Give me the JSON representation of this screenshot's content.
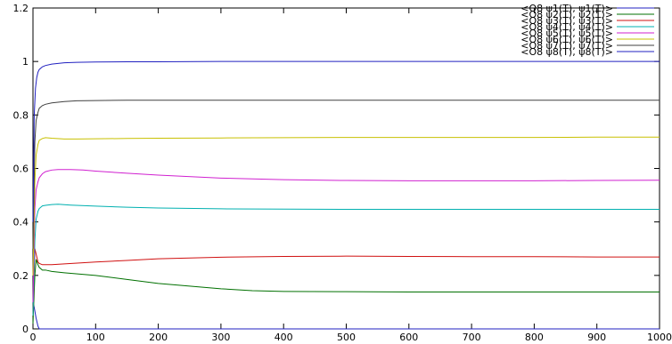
{
  "chart_data": {
    "type": "line",
    "title": "",
    "xlabel": "",
    "ylabel": "",
    "xlim": [
      0,
      1000
    ],
    "ylim": [
      0,
      1.2
    ],
    "x_ticks": [
      0,
      100,
      200,
      300,
      400,
      500,
      600,
      700,
      800,
      900,
      1000
    ],
    "x_tick_labels": [
      "0",
      "100",
      "200",
      "300",
      "400",
      "500",
      "600",
      "700",
      "800",
      "900",
      "1000"
    ],
    "y_ticks": [
      0,
      0.2,
      0.4,
      0.6,
      0.8,
      1,
      1.2
    ],
    "y_tick_labels": [
      "0",
      "0.2",
      "0.4",
      "0.6",
      "0.8",
      "1",
      "1.2"
    ],
    "grid": false,
    "legend_position": "top-right",
    "series": [
      {
        "name": "<O8 ψ1(T), ψ1(T)>",
        "color": "#2020c0",
        "x": [
          0,
          2,
          5,
          8,
          10,
          15,
          20,
          25,
          30,
          40,
          50,
          60,
          80,
          100,
          150,
          200,
          300,
          400,
          500,
          600,
          700,
          800,
          900,
          1000
        ],
        "y": [
          0.1,
          0.08,
          0.04,
          0.01,
          0,
          0,
          0,
          0,
          0,
          0,
          0,
          0,
          0,
          0,
          0,
          0,
          0,
          0,
          0,
          0,
          0,
          0,
          0,
          0
        ]
      },
      {
        "name": "<O8 ψ2(T), ψ2(T)>",
        "color": "#007000",
        "x": [
          0,
          3,
          5,
          8,
          10,
          15,
          20,
          30,
          50,
          100,
          150,
          200,
          300,
          350,
          400,
          500,
          600,
          700,
          800,
          900,
          1000
        ],
        "y": [
          0.02,
          0.2,
          0.26,
          0.24,
          0.23,
          0.22,
          0.22,
          0.215,
          0.21,
          0.2,
          0.185,
          0.17,
          0.15,
          0.143,
          0.14,
          0.139,
          0.138,
          0.138,
          0.138,
          0.138,
          0.138
        ]
      },
      {
        "name": "<O8 ψ3(T), ψ3(T)>",
        "color": "#d01010",
        "x": [
          0,
          3,
          5,
          8,
          10,
          15,
          20,
          30,
          50,
          100,
          150,
          200,
          300,
          400,
          500,
          600,
          700,
          800,
          900,
          1000
        ],
        "y": [
          0.05,
          0.3,
          0.28,
          0.25,
          0.245,
          0.24,
          0.24,
          0.24,
          0.243,
          0.25,
          0.256,
          0.262,
          0.268,
          0.271,
          0.272,
          0.271,
          0.27,
          0.27,
          0.269,
          0.269
        ]
      },
      {
        "name": "<O8 ψ4(T), ψ4(T)>",
        "color": "#00b0b0",
        "x": [
          0,
          3,
          5,
          8,
          10,
          15,
          20,
          30,
          40,
          60,
          100,
          150,
          200,
          300,
          400,
          500,
          600,
          700,
          800,
          900,
          1000
        ],
        "y": [
          0.05,
          0.33,
          0.41,
          0.44,
          0.45,
          0.46,
          0.462,
          0.465,
          0.466,
          0.463,
          0.459,
          0.455,
          0.452,
          0.449,
          0.448,
          0.447,
          0.447,
          0.447,
          0.447,
          0.447,
          0.447
        ]
      },
      {
        "name": "<O8 ψ5(T), ψ5(T)>",
        "color": "#d020d0",
        "x": [
          0,
          3,
          5,
          8,
          10,
          15,
          20,
          30,
          40,
          60,
          80,
          100,
          150,
          200,
          300,
          400,
          500,
          600,
          700,
          800,
          900,
          1000
        ],
        "y": [
          0.1,
          0.45,
          0.52,
          0.55,
          0.565,
          0.58,
          0.588,
          0.594,
          0.596,
          0.596,
          0.594,
          0.59,
          0.582,
          0.575,
          0.564,
          0.558,
          0.555,
          0.554,
          0.554,
          0.554,
          0.555,
          0.556
        ]
      },
      {
        "name": "<O8 ψ6(T), ψ6(T)>",
        "color": "#c8c000",
        "x": [
          0,
          3,
          5,
          8,
          10,
          15,
          20,
          30,
          50,
          70,
          100,
          150,
          200,
          300,
          400,
          500,
          600,
          700,
          800,
          900,
          1000
        ],
        "y": [
          0.2,
          0.55,
          0.65,
          0.69,
          0.705,
          0.712,
          0.715,
          0.713,
          0.71,
          0.71,
          0.711,
          0.712,
          0.713,
          0.714,
          0.715,
          0.716,
          0.716,
          0.716,
          0.716,
          0.717,
          0.717
        ]
      },
      {
        "name": "<O8 ψ7(T), ψ7(T)>",
        "color": "#404040",
        "x": [
          0,
          3,
          5,
          8,
          10,
          15,
          20,
          30,
          50,
          70,
          100,
          150,
          200,
          300,
          400,
          500,
          600,
          700,
          800,
          900,
          1000
        ],
        "y": [
          0.3,
          0.7,
          0.78,
          0.81,
          0.825,
          0.835,
          0.84,
          0.845,
          0.85,
          0.853,
          0.854,
          0.855,
          0.855,
          0.855,
          0.855,
          0.855,
          0.855,
          0.855,
          0.855,
          0.855,
          0.855
        ]
      },
      {
        "name": "<O8 ψ8(T), ψ8(T)>",
        "color": "#2020c0",
        "x": [
          0,
          2,
          4,
          6,
          8,
          10,
          15,
          20,
          30,
          50,
          70,
          100,
          150,
          200,
          300,
          400,
          500,
          600,
          700,
          800,
          900,
          1000
        ],
        "y": [
          0.4,
          0.8,
          0.9,
          0.94,
          0.96,
          0.97,
          0.98,
          0.985,
          0.99,
          0.995,
          0.997,
          0.998,
          0.999,
          0.999,
          1.0,
          1.0,
          1.0,
          1.0,
          1.0,
          1.0,
          1.0,
          1.0
        ]
      }
    ]
  }
}
